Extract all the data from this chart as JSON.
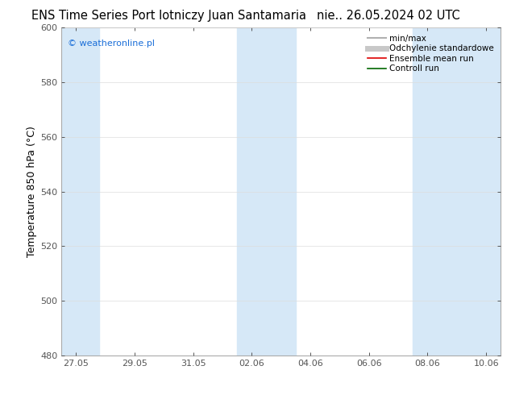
{
  "title_left": "ENS Time Series Port lotniczy Juan Santamaria",
  "title_right": "nie.. 26.05.2024 02 UTC",
  "ylabel": "Temperature 850 hPa (°C)",
  "watermark": "© weatheronline.pl",
  "watermark_color": "#1a6ed8",
  "ylim": [
    480,
    600
  ],
  "yticks": [
    480,
    500,
    520,
    540,
    560,
    580,
    600
  ],
  "xtick_labels": [
    "27.05",
    "29.05",
    "31.05",
    "02.06",
    "04.06",
    "06.06",
    "08.06",
    "10.06"
  ],
  "shaded_color": "#d6e8f7",
  "background_color": "#ffffff",
  "legend_entries": [
    {
      "label": "min/max",
      "color": "#b0b0b0",
      "linewidth": 1.5,
      "linestyle": "-"
    },
    {
      "label": "Odchylenie standardowe",
      "color": "#c8c8c8",
      "linewidth": 5,
      "linestyle": "-"
    },
    {
      "label": "Ensemble mean run",
      "color": "#dd0000",
      "linewidth": 1.2,
      "linestyle": "-"
    },
    {
      "label": "Controll run",
      "color": "#006600",
      "linewidth": 1.2,
      "linestyle": "-"
    }
  ],
  "title_fontsize": 10.5,
  "axis_fontsize": 9,
  "tick_fontsize": 8,
  "legend_fontsize": 7.5,
  "watermark_fontsize": 8,
  "spine_color": "#aaaaaa"
}
